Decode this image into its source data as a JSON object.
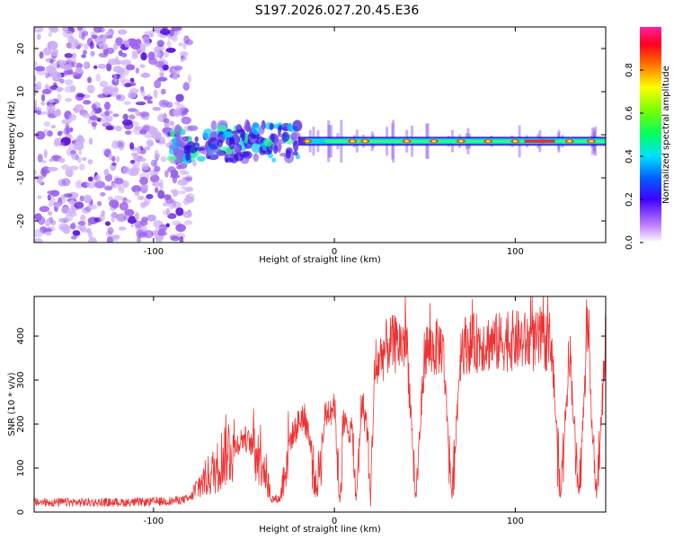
{
  "title": "S197.2026.027.20.45.E36",
  "chart_data": [
    {
      "type": "heatmap",
      "panel": "spectrogram",
      "xlabel": "Height of straight line (km)",
      "ylabel": "Frequency (Hz)",
      "xlim": [
        -166,
        150
      ],
      "ylim": [
        -25,
        25
      ],
      "xticks": [
        -100,
        0,
        100
      ],
      "xtick_labels": [
        "-100",
        "0",
        "100"
      ],
      "yticks": [
        -20,
        -10,
        0,
        10,
        20
      ],
      "ytick_labels": [
        "-20",
        "-10",
        "0",
        "10",
        "20"
      ],
      "colorbar": {
        "label": "Normalized spectral amplitude",
        "range": [
          0,
          1
        ],
        "ticks": [
          0.0,
          0.2,
          0.4,
          0.6,
          0.8
        ],
        "tick_labels": [
          "0.0",
          "0.2",
          "0.4",
          "0.6",
          "0.8"
        ],
        "colors": [
          "#ff44ff",
          "#ff0000",
          "#ffff00",
          "#00ff00",
          "#00ffff",
          "#0000ff",
          "#6600cc",
          "#ffffff"
        ]
      },
      "features": {
        "noise_region_x": [
          -166,
          -80
        ],
        "signal_line_x": [
          -20,
          150
        ],
        "signal_frequency_hz": -1.5,
        "burst_region_x": [
          -90,
          -20
        ]
      }
    },
    {
      "type": "line",
      "panel": "snr",
      "xlabel": "Height of straight line (km)",
      "ylabel": "SNR (10 * v/v)",
      "xlim": [
        -166,
        150
      ],
      "ylim": [
        0,
        490
      ],
      "xticks": [
        -100,
        0,
        100
      ],
      "xtick_labels": [
        "-100",
        "0",
        "100"
      ],
      "yticks": [
        0,
        100,
        200,
        300,
        400
      ],
      "ytick_labels": [
        "0",
        "100",
        "200",
        "300",
        "400"
      ],
      "line_color": "#ee3333",
      "series": [
        {
          "name": "SNR",
          "x": [
            -166,
            -150,
            -130,
            -110,
            -90,
            -80,
            -75,
            -70,
            -65,
            -60,
            -55,
            -50,
            -45,
            -40,
            -35,
            -30,
            -25,
            -20,
            -18,
            -15,
            -10,
            -5,
            0,
            3,
            5,
            8,
            10,
            12,
            15,
            18,
            20,
            22,
            25,
            30,
            35,
            40,
            45,
            50,
            55,
            60,
            65,
            70,
            80,
            90,
            100,
            110,
            120,
            125,
            130,
            135,
            140,
            145,
            150
          ],
          "y": [
            22,
            22,
            22,
            22,
            25,
            30,
            60,
            80,
            100,
            140,
            150,
            170,
            150,
            130,
            30,
            30,
            160,
            200,
            220,
            200,
            50,
            220,
            250,
            20,
            200,
            190,
            180,
            20,
            250,
            200,
            20,
            300,
            350,
            380,
            380,
            390,
            30,
            370,
            370,
            380,
            30,
            380,
            385,
            385,
            390,
            385,
            390,
            30,
            380,
            30,
            390,
            30,
            390
          ]
        }
      ]
    }
  ]
}
